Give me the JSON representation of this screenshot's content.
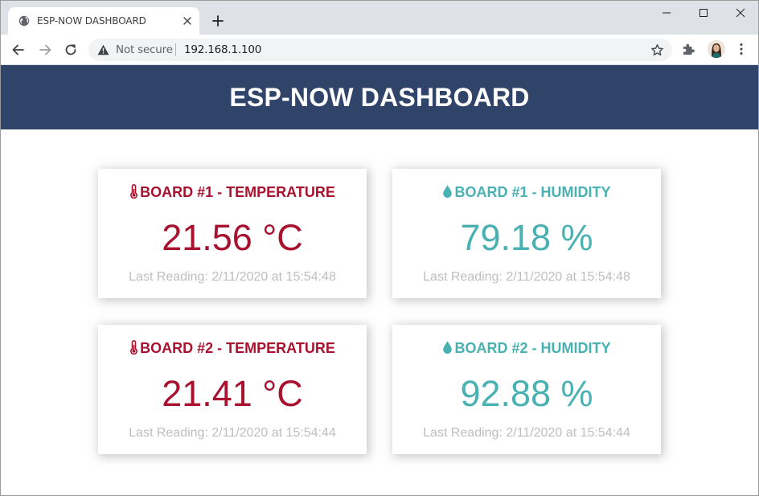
{
  "browser": {
    "tab_title": "ESP-NOW DASHBOARD",
    "security_label": "Not secure",
    "url": "192.168.1.100"
  },
  "page": {
    "heading": "ESP-NOW DASHBOARD"
  },
  "cards": [
    {
      "title": "BOARD #1 - TEMPERATURE",
      "value": "21.56 °C",
      "reading": "Last Reading: 2/11/2020 at 15:54:48",
      "icon": "thermometer-icon",
      "color": "#a9122e"
    },
    {
      "title": "BOARD #1 - HUMIDITY",
      "value": "79.18 %",
      "reading": "Last Reading: 2/11/2020 at 15:54:48",
      "icon": "droplet-icon",
      "color": "#4ab1b2"
    },
    {
      "title": "BOARD #2 - TEMPERATURE",
      "value": "21.41 °C",
      "reading": "Last Reading: 2/11/2020 at 15:54:44",
      "icon": "thermometer-icon",
      "color": "#a9122e"
    },
    {
      "title": "BOARD #2 - HUMIDITY",
      "value": "92.88 %",
      "reading": "Last Reading: 2/11/2020 at 15:54:44",
      "icon": "droplet-icon",
      "color": "#4ab1b2"
    }
  ],
  "colors": {
    "header_bg": "#2f4468",
    "temperature": "#a9122e",
    "humidity": "#4ab1b2",
    "reading_text": "#bebebe"
  }
}
